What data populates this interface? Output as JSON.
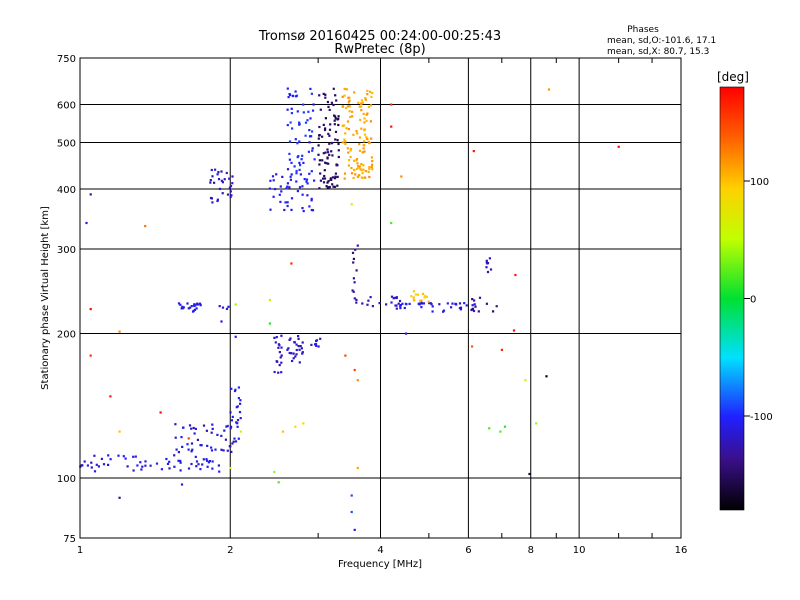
{
  "chart_data": {
    "type": "scatter",
    "title": "Tromsø 20160425 00:24:00-00:25:43",
    "subtitle": "RwPretec (8p)",
    "xlabel": "Frequency [MHz]",
    "ylabel": "Stationary phase Virtual Height [km]",
    "x_scale": "log",
    "y_scale": "log",
    "xlim": [
      1,
      16
    ],
    "ylim": [
      75,
      750
    ],
    "x_ticks": [
      1,
      2,
      4,
      6,
      8,
      10,
      16
    ],
    "y_ticks": [
      75,
      100,
      200,
      300,
      400,
      500,
      600,
      750
    ],
    "grid": true,
    "phases_box": {
      "title": "Phases",
      "line1": "mean, sd,O:-101.6, 17.1",
      "line2": "mean, sd,X:  80.7, 15.3"
    },
    "colorbar": {
      "label": "[deg]",
      "range": [
        -180,
        180
      ],
      "ticks": [
        100,
        0,
        -100
      ]
    },
    "clusters": [
      {
        "x_min": 1.0,
        "x_max": 1.9,
        "y_min": 103,
        "y_max": 112,
        "phase": -110,
        "n": 60
      },
      {
        "x_min": 1.55,
        "x_max": 2.05,
        "y_min": 112,
        "y_max": 130,
        "phase": -115,
        "n": 45
      },
      {
        "x_min": 2.0,
        "x_max": 2.1,
        "y_min": 118,
        "y_max": 155,
        "phase": -108,
        "n": 22
      },
      {
        "x_min": 1.55,
        "x_max": 1.75,
        "y_min": 222,
        "y_max": 232,
        "phase": -110,
        "n": 22
      },
      {
        "x_min": 1.9,
        "x_max": 2.0,
        "y_min": 225,
        "y_max": 230,
        "phase": -105,
        "n": 4
      },
      {
        "x_min": 2.45,
        "x_max": 2.55,
        "y_min": 165,
        "y_max": 200,
        "phase": -120,
        "n": 18
      },
      {
        "x_min": 2.6,
        "x_max": 2.8,
        "y_min": 170,
        "y_max": 198,
        "phase": -120,
        "n": 25
      },
      {
        "x_min": 2.9,
        "x_max": 3.05,
        "y_min": 188,
        "y_max": 198,
        "phase": -115,
        "n": 8
      },
      {
        "x_min": 1.82,
        "x_max": 2.05,
        "y_min": 375,
        "y_max": 440,
        "phase": -118,
        "n": 30
      },
      {
        "x_min": 2.4,
        "x_max": 2.95,
        "y_min": 360,
        "y_max": 430,
        "phase": -108,
        "n": 45
      },
      {
        "x_min": 2.6,
        "x_max": 2.95,
        "y_min": 430,
        "y_max": 650,
        "phase": -100,
        "n": 60
      },
      {
        "x_min": 3.0,
        "x_max": 3.3,
        "y_min": 400,
        "y_max": 650,
        "phase": -150,
        "n": 90
      },
      {
        "x_min": 3.35,
        "x_max": 3.85,
        "y_min": 420,
        "y_max": 650,
        "phase": 110,
        "n": 120
      },
      {
        "x_min": 3.5,
        "x_max": 3.6,
        "y_min": 240,
        "y_max": 310,
        "phase": -135,
        "n": 10
      },
      {
        "x_min": 3.55,
        "x_max": 4.4,
        "y_min": 228,
        "y_max": 240,
        "phase": -120,
        "n": 20
      },
      {
        "x_min": 4.3,
        "x_max": 6.2,
        "y_min": 222,
        "y_max": 232,
        "phase": -110,
        "n": 40
      },
      {
        "x_min": 4.6,
        "x_max": 5.0,
        "y_min": 232,
        "y_max": 245,
        "phase": 95,
        "n": 14
      },
      {
        "x_min": 6.5,
        "x_max": 6.7,
        "y_min": 265,
        "y_max": 290,
        "phase": -118,
        "n": 8
      },
      {
        "x_min": 6.1,
        "x_max": 6.9,
        "y_min": 222,
        "y_max": 240,
        "phase": -140,
        "n": 10
      }
    ],
    "points": [
      {
        "x": 1.05,
        "y": 390,
        "phase": -130
      },
      {
        "x": 1.03,
        "y": 340,
        "phase": -110
      },
      {
        "x": 1.05,
        "y": 225,
        "phase": 175
      },
      {
        "x": 1.2,
        "y": 202,
        "phase": 120
      },
      {
        "x": 1.05,
        "y": 180,
        "phase": 160
      },
      {
        "x": 1.15,
        "y": 148,
        "phase": 170
      },
      {
        "x": 1.45,
        "y": 137,
        "phase": 175
      },
      {
        "x": 1.35,
        "y": 335,
        "phase": 130
      },
      {
        "x": 1.2,
        "y": 91,
        "phase": -140
      },
      {
        "x": 1.6,
        "y": 97,
        "phase": -110
      },
      {
        "x": 1.2,
        "y": 125,
        "phase": 100
      },
      {
        "x": 1.65,
        "y": 121,
        "phase": 150
      },
      {
        "x": 1.92,
        "y": 212,
        "phase": -110
      },
      {
        "x": 2.0,
        "y": 105,
        "phase": 50
      },
      {
        "x": 2.05,
        "y": 230,
        "phase": 40
      },
      {
        "x": 2.1,
        "y": 125,
        "phase": 60
      },
      {
        "x": 2.45,
        "y": 103,
        "phase": 40
      },
      {
        "x": 2.5,
        "y": 98,
        "phase": 20
      },
      {
        "x": 2.4,
        "y": 210,
        "phase": 10
      },
      {
        "x": 2.55,
        "y": 125,
        "phase": 100
      },
      {
        "x": 2.65,
        "y": 280,
        "phase": 160
      },
      {
        "x": 2.7,
        "y": 128,
        "phase": 90
      },
      {
        "x": 2.8,
        "y": 130,
        "phase": 80
      },
      {
        "x": 2.4,
        "y": 235,
        "phase": 70
      },
      {
        "x": 3.5,
        "y": 372,
        "phase": 60
      },
      {
        "x": 3.4,
        "y": 180,
        "phase": 150
      },
      {
        "x": 3.55,
        "y": 168,
        "phase": 150
      },
      {
        "x": 3.6,
        "y": 160,
        "phase": 120
      },
      {
        "x": 3.6,
        "y": 105,
        "phase": 110
      },
      {
        "x": 3.5,
        "y": 85,
        "phase": -90
      },
      {
        "x": 3.5,
        "y": 92,
        "phase": -90
      },
      {
        "x": 3.55,
        "y": 78,
        "phase": -110
      },
      {
        "x": 4.2,
        "y": 340,
        "phase": 20
      },
      {
        "x": 4.4,
        "y": 425,
        "phase": 120
      },
      {
        "x": 4.2,
        "y": 540,
        "phase": 170
      },
      {
        "x": 4.5,
        "y": 200,
        "phase": -110
      },
      {
        "x": 4.2,
        "y": 600,
        "phase": 160
      },
      {
        "x": 6.15,
        "y": 480,
        "phase": 170
      },
      {
        "x": 6.6,
        "y": 127,
        "phase": 20
      },
      {
        "x": 6.95,
        "y": 125,
        "phase": 20
      },
      {
        "x": 7.1,
        "y": 128,
        "phase": 10
      },
      {
        "x": 7.0,
        "y": 185,
        "phase": 165
      },
      {
        "x": 7.4,
        "y": 203,
        "phase": 175
      },
      {
        "x": 7.45,
        "y": 265,
        "phase": 170
      },
      {
        "x": 7.8,
        "y": 160,
        "phase": 60
      },
      {
        "x": 8.2,
        "y": 130,
        "phase": 40
      },
      {
        "x": 8.6,
        "y": 163,
        "phase": -170
      },
      {
        "x": 8.7,
        "y": 645,
        "phase": 115
      },
      {
        "x": 7.95,
        "y": 102,
        "phase": -160
      },
      {
        "x": 12.0,
        "y": 490,
        "phase": 175
      },
      {
        "x": 6.1,
        "y": 188,
        "phase": 140
      },
      {
        "x": 2.05,
        "y": 197,
        "phase": -110
      }
    ]
  },
  "colors": {
    "axis": "#000000",
    "grid": "#000000",
    "background": "#ffffff"
  }
}
